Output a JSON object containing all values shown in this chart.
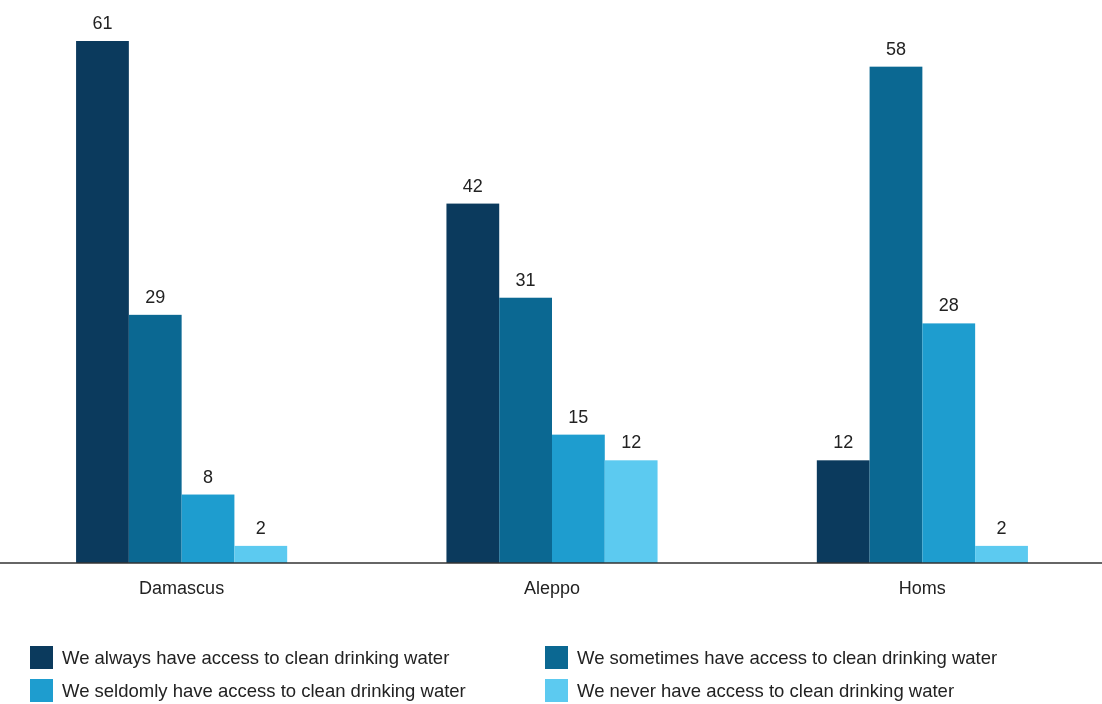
{
  "chart_data": {
    "type": "bar",
    "categories": [
      "Damascus",
      "Aleppo",
      "Homs"
    ],
    "series": [
      {
        "name": "We always have access to clean drinking water",
        "color": "#0b3a5d",
        "values": [
          61,
          42,
          12
        ]
      },
      {
        "name": "We sometimes have access to clean drinking water",
        "color": "#0b6892",
        "values": [
          29,
          31,
          58
        ]
      },
      {
        "name": "We seldomly have access to clean drinking water",
        "color": "#1e9dcf",
        "values": [
          8,
          15,
          28
        ]
      },
      {
        "name": "We never have access to clean drinking water",
        "color": "#5ccaf0",
        "values": [
          2,
          12,
          2
        ]
      }
    ],
    "data_labels": true,
    "legend": "bottom",
    "grid": false
  }
}
